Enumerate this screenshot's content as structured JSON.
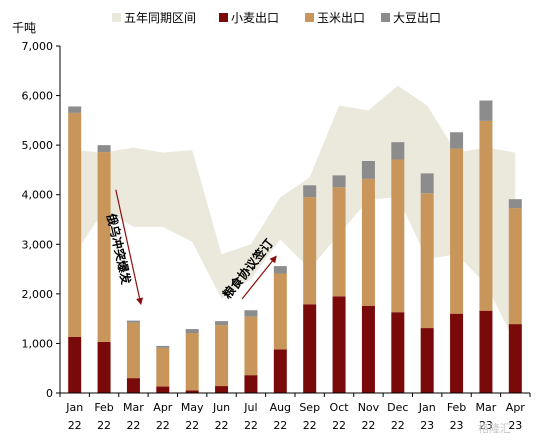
{
  "chart_data": {
    "type": "bar",
    "stacked": true,
    "unit_label": "千吨",
    "categories": [
      "Jan 22",
      "Feb 22",
      "Mar 22",
      "Apr 22",
      "May 22",
      "Jun 22",
      "Jul 22",
      "Aug 22",
      "Sep 22",
      "Oct 22",
      "Nov 22",
      "Dec 22",
      "Jan 23",
      "Feb 23",
      "Mar 23",
      "Apr 23"
    ],
    "x_tick_labels": [
      [
        "Jan",
        "22"
      ],
      [
        "Feb",
        "22"
      ],
      [
        "Mar",
        "22"
      ],
      [
        "Apr",
        "22"
      ],
      [
        "May",
        "22"
      ],
      [
        "Jun",
        "22"
      ],
      [
        "Jul",
        "22"
      ],
      [
        "Aug",
        "22"
      ],
      [
        "Sep",
        "22"
      ],
      [
        "Oct",
        "22"
      ],
      [
        "Nov",
        "22"
      ],
      [
        "Dec",
        "22"
      ],
      [
        "Jan",
        "23"
      ],
      [
        "Feb",
        "23"
      ],
      [
        "Mar",
        "23"
      ],
      [
        "Apr",
        "23"
      ]
    ],
    "y_tick_labels": [
      "0",
      "1,000",
      "2,000",
      "3,000",
      "4,000",
      "5,000",
      "6,000",
      "7,000"
    ],
    "ylim": [
      0,
      7000
    ],
    "grid": false,
    "legend_position": "top",
    "band": {
      "name": "五年同期区间",
      "color": "#ebe8dc",
      "lower": [
        2800,
        3700,
        3350,
        3350,
        3050,
        1900,
        2300,
        3100,
        2500,
        3200,
        3900,
        3950,
        2700,
        2800,
        2200,
        1000
      ],
      "upper": [
        4900,
        4850,
        4950,
        4850,
        4900,
        2800,
        3000,
        3950,
        4350,
        5800,
        5700,
        6200,
        5800,
        4850,
        4950,
        4850
      ]
    },
    "series": [
      {
        "name": "小麦出口",
        "color": "#7a0a0a",
        "values": [
          1130,
          1030,
          300,
          130,
          50,
          140,
          360,
          880,
          1790,
          1950,
          1760,
          1630,
          1310,
          1600,
          1660,
          1390
        ]
      },
      {
        "name": "玉米出口",
        "color": "#c8965a",
        "values": [
          4520,
          3830,
          1120,
          780,
          1160,
          1230,
          1180,
          1530,
          2160,
          2200,
          2560,
          3080,
          2720,
          3330,
          3830,
          2340
        ]
      },
      {
        "name": "大豆出口",
        "color": "#8c8c8c",
        "values": [
          130,
          140,
          40,
          40,
          80,
          80,
          130,
          150,
          240,
          240,
          360,
          350,
          400,
          330,
          410,
          180
        ]
      }
    ],
    "annotations": [
      {
        "text": "俄乌冲突爆发",
        "direction": "down",
        "x_from": 1.4,
        "y_from": 4100,
        "x_to": 2.25,
        "y_to": 1800
      },
      {
        "text": "粮食协议签订",
        "direction": "up",
        "x_from": 5.7,
        "y_from": 1900,
        "x_to": 6.85,
        "y_to": 2750
      }
    ],
    "watermark": "格隆汇"
  }
}
